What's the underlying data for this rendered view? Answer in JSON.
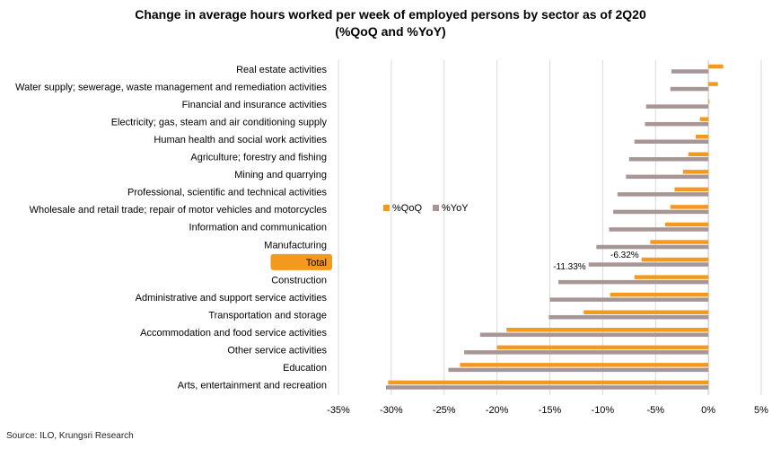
{
  "chart_data": {
    "type": "bar",
    "orientation": "horizontal",
    "title": "Change in average hours worked per week of employed persons by sector as of 2Q20",
    "subtitle": "(%QoQ and %YoY)",
    "source": "Source: ILO, Krungsri Research",
    "categories": [
      "Real estate activities",
      "Water supply; sewerage, waste management and remediation activities",
      "Financial and insurance activities",
      "Electricity; gas, steam and air conditioning supply",
      "Human health and social work activities",
      "Agriculture; forestry and fishing",
      "Mining and quarrying",
      "Professional, scientific and technical activities",
      "Wholesale and retail trade; repair of motor vehicles and motorcycles",
      "Information and communication",
      "Manufacturing",
      "Total",
      "Construction",
      "Administrative and support service activities",
      "Transportation and storage",
      "Accommodation and food service activities",
      "Other service activities",
      "Education",
      "Arts, entertainment and recreation"
    ],
    "highlight_category": "Total",
    "series": [
      {
        "name": "%QoQ",
        "color": "#F39A1E",
        "values": [
          1.4,
          0.9,
          0.1,
          -0.8,
          -1.2,
          -1.9,
          -2.4,
          -3.2,
          -3.6,
          -4.1,
          -5.5,
          -6.32,
          -7.0,
          -9.3,
          -11.8,
          -19.1,
          -20.0,
          -23.5,
          -30.3
        ]
      },
      {
        "name": "%YoY",
        "color": "#A89595",
        "values": [
          -3.5,
          -3.6,
          -5.9,
          -6.0,
          -7.0,
          -7.5,
          -7.8,
          -8.6,
          -9.0,
          -9.4,
          -10.6,
          -11.33,
          -14.2,
          -15.0,
          -15.1,
          -21.6,
          -23.1,
          -24.6,
          -30.5
        ]
      }
    ],
    "data_labels": [
      {
        "text": "-6.32%",
        "category": "Total",
        "series": "%QoQ",
        "value": -6.32
      },
      {
        "text": "-11.33%",
        "category": "Total",
        "series": "%YoY",
        "value": -11.33
      }
    ],
    "xlim": [
      -35,
      5
    ],
    "xticks": [
      -35,
      -30,
      -25,
      -20,
      -15,
      -10,
      -5,
      0,
      5
    ],
    "xtick_labels": [
      "-35%",
      "-30%",
      "-25%",
      "-20%",
      "-15%",
      "-10%",
      "-5%",
      "0%",
      "5%"
    ],
    "grid": "vertical",
    "legend": "center"
  }
}
